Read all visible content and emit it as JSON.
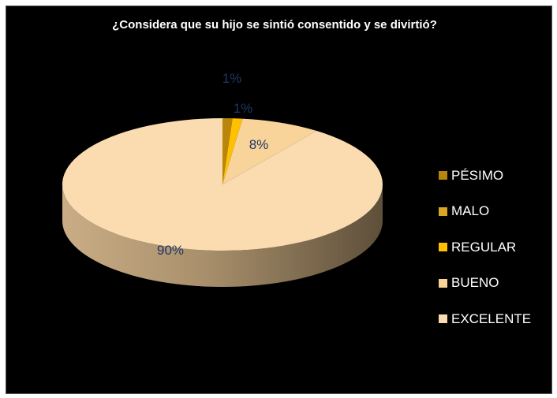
{
  "chart_data": {
    "type": "pie",
    "title": "¿Considera que su hijo se sintió consentido y se divirtió?",
    "categories": [
      "PÉSIMO",
      "MALO",
      "REGULAR",
      "BUENO",
      "EXCELENTE"
    ],
    "values": [
      1,
      0,
      1,
      8,
      90
    ],
    "data_labels": [
      "1%",
      "",
      "1%",
      "8%",
      "90%"
    ],
    "colors": [
      "#b8860b",
      "#daa520",
      "#ffc000",
      "#f8d39a",
      "#fbdcb0"
    ],
    "legend_position": "right",
    "style": "3d"
  }
}
